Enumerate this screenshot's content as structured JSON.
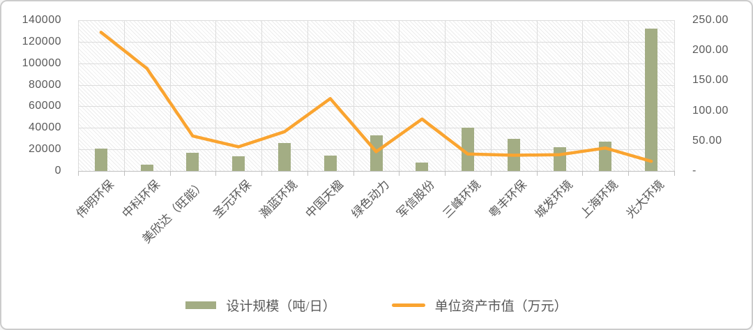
{
  "chart_data": {
    "type": "bar",
    "subtype": "combo-bar-line",
    "title": "",
    "categories": [
      "伟明环保",
      "中科环保",
      "美欣达（旺能）",
      "圣元环保",
      "瀚蓝环境",
      "中国天楹",
      "绿色动力",
      "军信股份",
      "三峰环境",
      "粤丰环保",
      "城发环境",
      "上海环境",
      "光大环境"
    ],
    "series": [
      {
        "name": "设计规模（吨/日）",
        "type": "bar",
        "yaxis": "left",
        "values": [
          21000,
          6000,
          17000,
          13500,
          26000,
          14000,
          33000,
          8000,
          40000,
          30000,
          22000,
          27000,
          132000
        ]
      },
      {
        "name": "单位资产市值（万元）",
        "type": "line",
        "yaxis": "right",
        "values": [
          230,
          170,
          58,
          40,
          65,
          120,
          32,
          86,
          28,
          26,
          27,
          38,
          16
        ]
      }
    ],
    "left_axis": {
      "min": 0,
      "max": 140000,
      "step": 20000,
      "tick_labels_top_to_bottom": [
        "140000",
        "120000",
        "100000",
        "80000",
        "60000",
        "40000",
        "20000",
        "0"
      ]
    },
    "right_axis": {
      "min": 0,
      "max": 250,
      "step": 50,
      "tick_labels_top_to_bottom": [
        "250.00",
        "200.00",
        "150.00",
        "100.00",
        "50.00",
        "-"
      ]
    },
    "grid": {
      "horizontal": true,
      "vertical": true
    },
    "plot_background": "diagonal-hatch",
    "legend_position": "bottom",
    "x_label_rotation_deg": -45
  },
  "colors": {
    "bar": "#A3AD84",
    "line": "#FAA430",
    "grid": "#DCDCDC",
    "axis": "#BFBFBF",
    "text": "#595959",
    "background": "#FFFFFF",
    "frame_border": "#CCCCCC"
  }
}
